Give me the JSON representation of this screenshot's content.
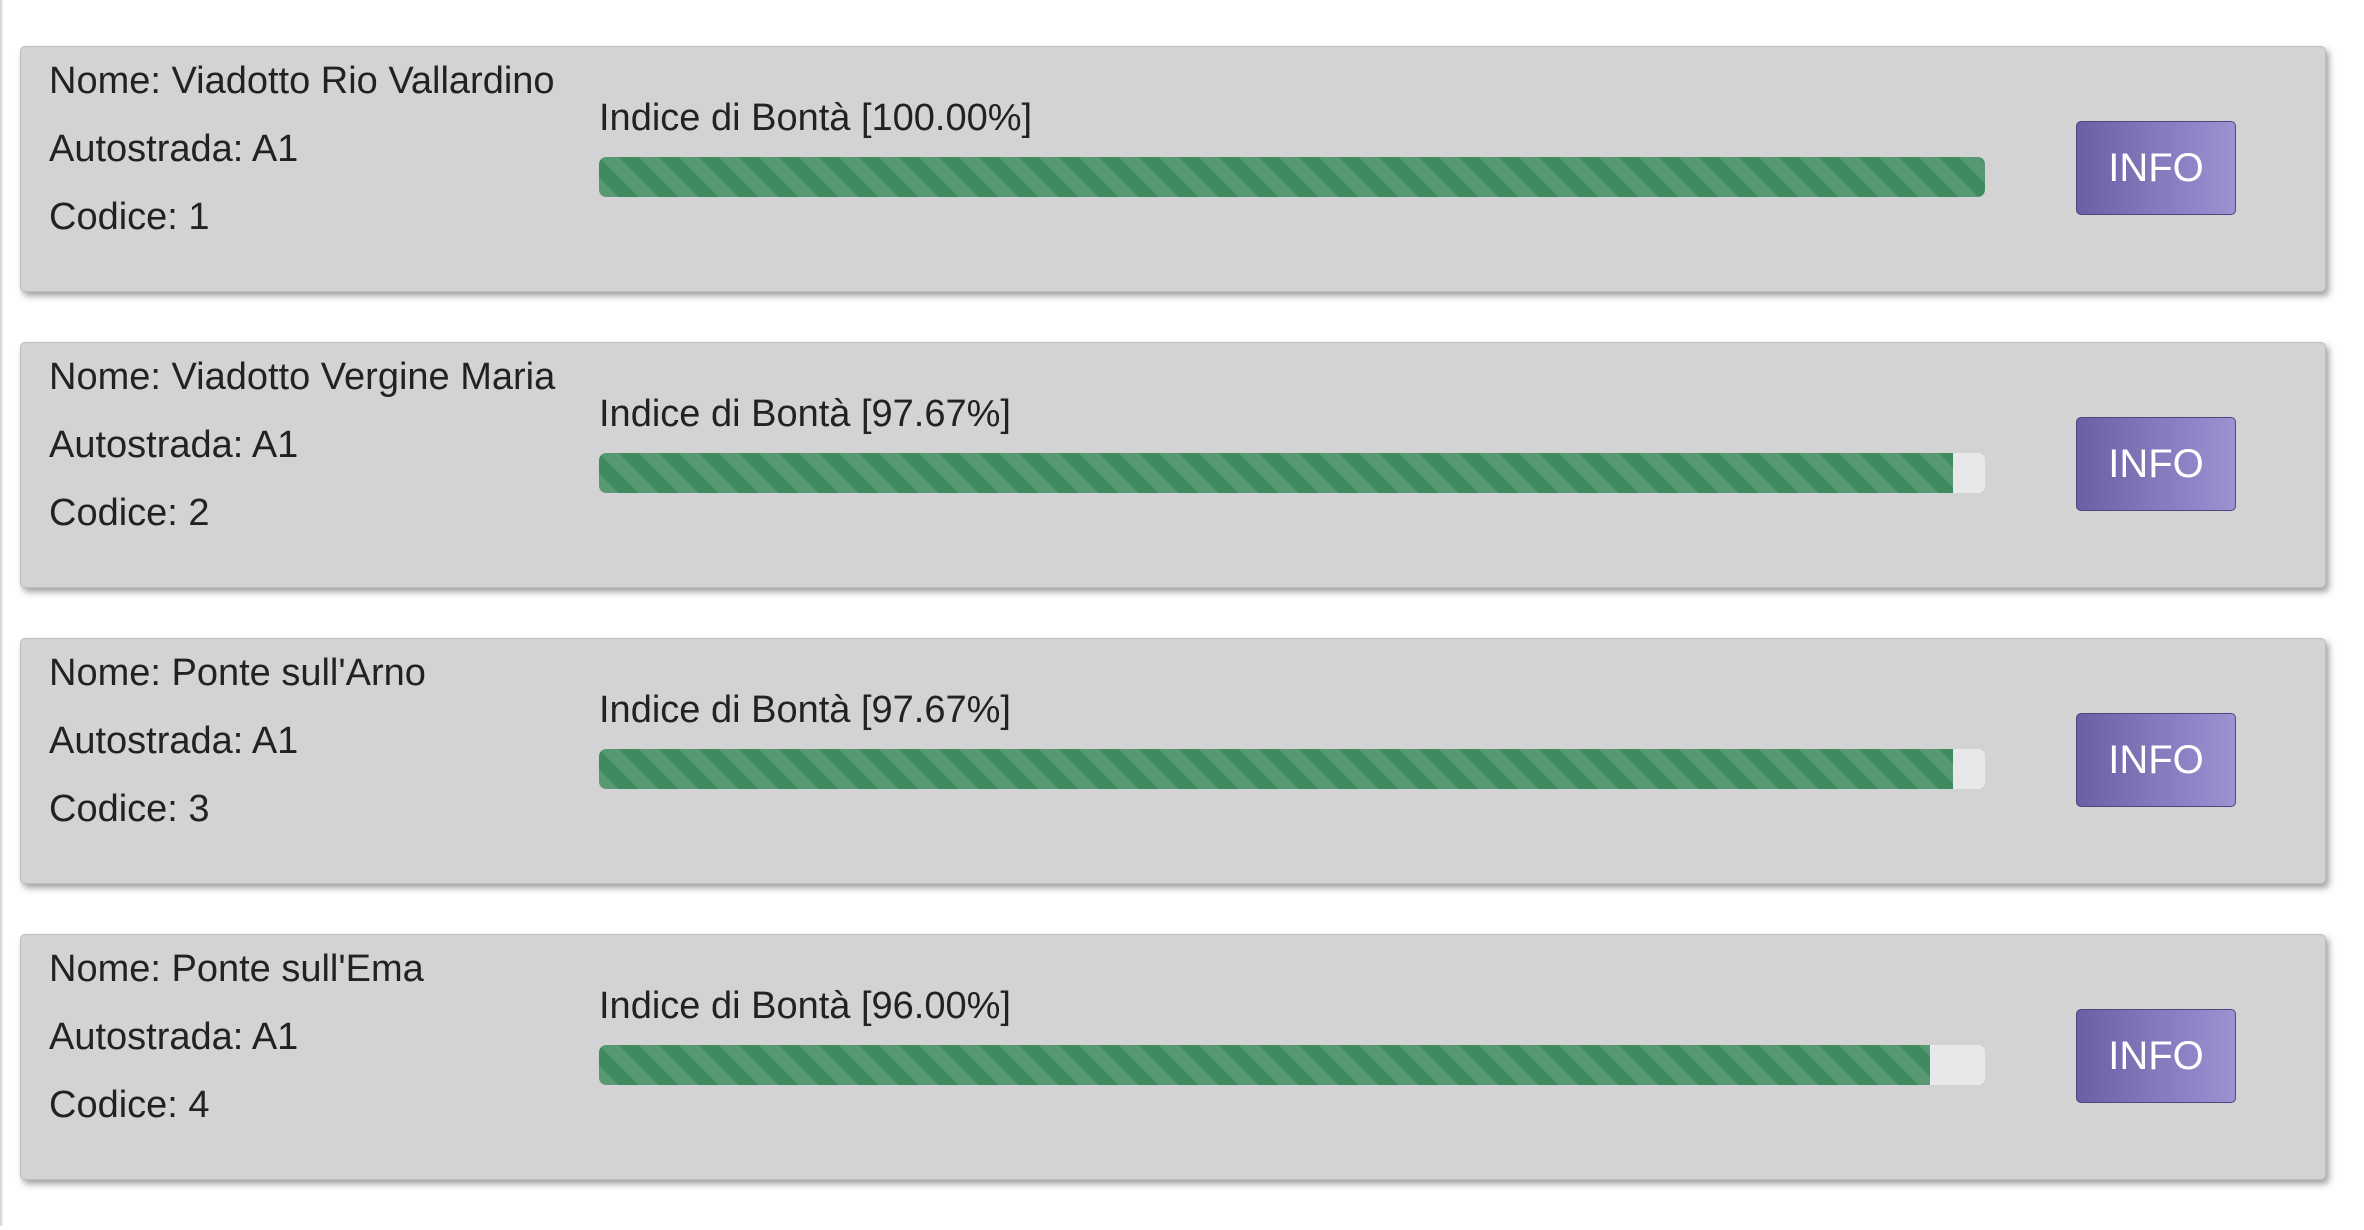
{
  "labels": {
    "name_prefix": "Nome: ",
    "highway_prefix": "Autostrada: ",
    "code_prefix": "Codice: ",
    "index_prefix": "Indice di Bontà ",
    "button_label": "INFO"
  },
  "colors": {
    "card_bg": "#d3d3d3",
    "bar_fill": "#3f8a5e",
    "bar_track": "#e6e8ea",
    "button_gradient_start": "#6a5fa3",
    "button_gradient_end": "#9c93d3"
  },
  "bridges": [
    {
      "name": "Viadotto Rio Vallardino",
      "highway": "A1",
      "code": "1",
      "index_text": "[100.00%]",
      "index_value": 100.0
    },
    {
      "name": "Viadotto Vergine Maria",
      "highway": "A1",
      "code": "2",
      "index_text": "[97.67%]",
      "index_value": 97.67
    },
    {
      "name": "Ponte sull'Arno",
      "highway": "A1",
      "code": "3",
      "index_text": "[97.67%]",
      "index_value": 97.67
    },
    {
      "name": "Ponte sull'Ema",
      "highway": "A1",
      "code": "4",
      "index_text": "[96.00%]",
      "index_value": 96.0
    }
  ]
}
